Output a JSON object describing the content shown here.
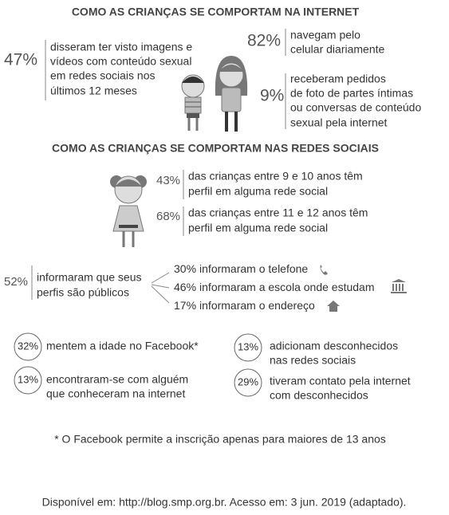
{
  "internet": {
    "title": "COMO AS CRIANÇAS SE COMPORTAM NA INTERNET",
    "items": [
      {
        "percent": "47%",
        "lines": [
          "disseram ter visto imagens e",
          "vídeos com conteúdo sexual",
          "em redes sociais nos",
          "últimos 12 meses"
        ]
      },
      {
        "percent": "82%",
        "lines": [
          "navegam pelo",
          "celular diariamente"
        ]
      },
      {
        "percent": "9%",
        "lines": [
          "receberam pedidos",
          "de foto de partes íntimas",
          "ou conversas de conteúdo",
          "sexual pela internet"
        ]
      }
    ]
  },
  "social": {
    "title": "COMO AS CRIANÇAS SE COMPORTAM NAS REDES SOCIAIS",
    "profiles": [
      {
        "percent": "43%",
        "lines": [
          "das crianças entre 9 e 10 anos têm",
          "perfil em alguma rede social"
        ]
      },
      {
        "percent": "68%",
        "lines": [
          "das crianças entre 11 e 12 anos têm",
          "perfil em alguma rede social"
        ]
      }
    ],
    "public": {
      "percent": "52%",
      "lines": [
        "informaram que seus",
        "perfis são públicos"
      ],
      "details": [
        {
          "percent": "30%",
          "text": "informaram o telefone"
        },
        {
          "percent": "46%",
          "text": "informaram a escola onde estudam"
        },
        {
          "percent": "17%",
          "text": "informaram o endereço"
        }
      ]
    },
    "circles": [
      {
        "percent": "32%",
        "lines": [
          "mentem a idade no Facebook*"
        ]
      },
      {
        "percent": "13%",
        "lines": [
          "encontraram-se com alguém",
          "que conheceram na internet"
        ]
      },
      {
        "percent": "13%",
        "lines": [
          "adicionam desconhecidos",
          "nas redes sociais"
        ]
      },
      {
        "percent": "29%",
        "lines": [
          "tiveram contato pela internet",
          "com desconhecidos"
        ]
      }
    ]
  },
  "footnote": "* O Facebook permite a inscrição apenas para maiores de 13 anos",
  "source": "Disponível em: http://blog.smp.org.br. Acesso em: 3 jun. 2019 (adaptado)."
}
